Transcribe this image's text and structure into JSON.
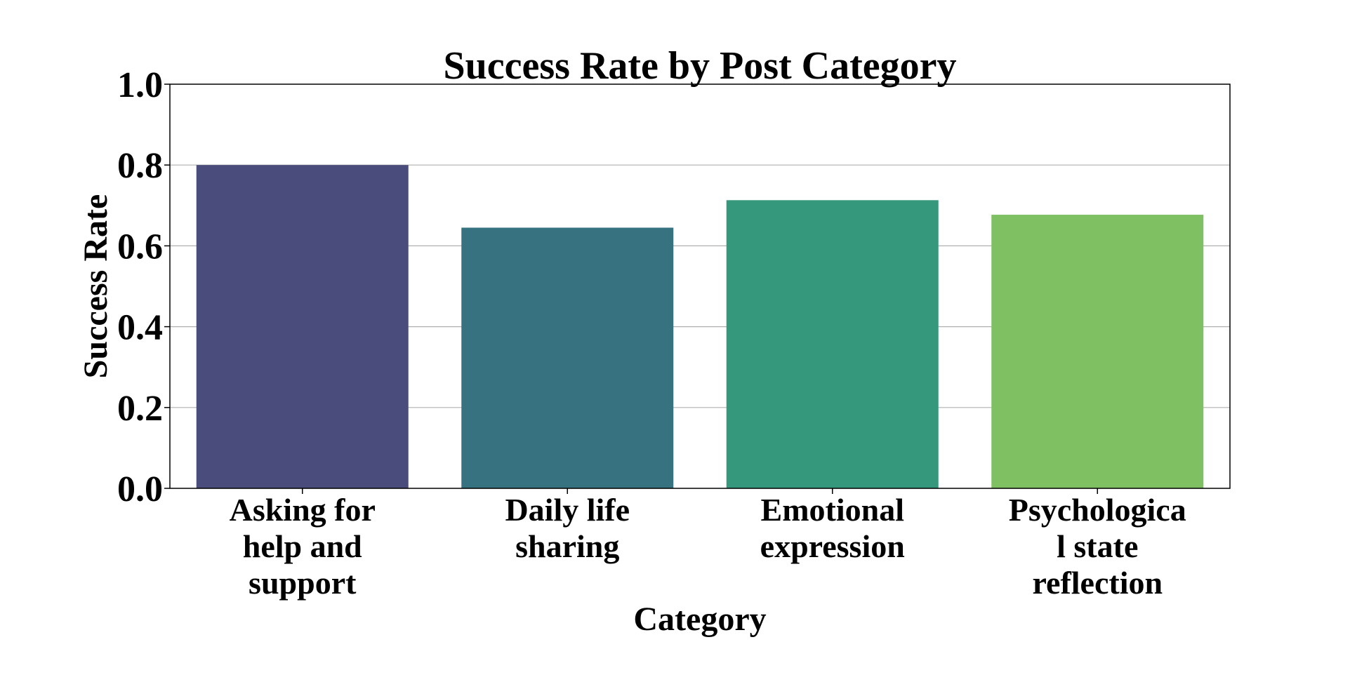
{
  "chart_data": {
    "type": "bar",
    "title": "Success Rate by Post Category",
    "xlabel": "Category",
    "ylabel": "Success Rate",
    "categories": [
      [
        "Asking for",
        "help and",
        "support"
      ],
      [
        "Daily life",
        "sharing"
      ],
      [
        "Emotional",
        "expression"
      ],
      [
        "Psychologica",
        "l state",
        "reflection"
      ]
    ],
    "values": [
      0.8,
      0.645,
      0.713,
      0.677
    ],
    "colors": [
      "#4a4d7c",
      "#367280",
      "#35987c",
      "#7fc063"
    ],
    "ylim": [
      0,
      1.0
    ],
    "yticks": [
      "0.0",
      "0.2",
      "0.4",
      "0.6",
      "0.8",
      "1.0"
    ],
    "grid": "horizontal"
  }
}
